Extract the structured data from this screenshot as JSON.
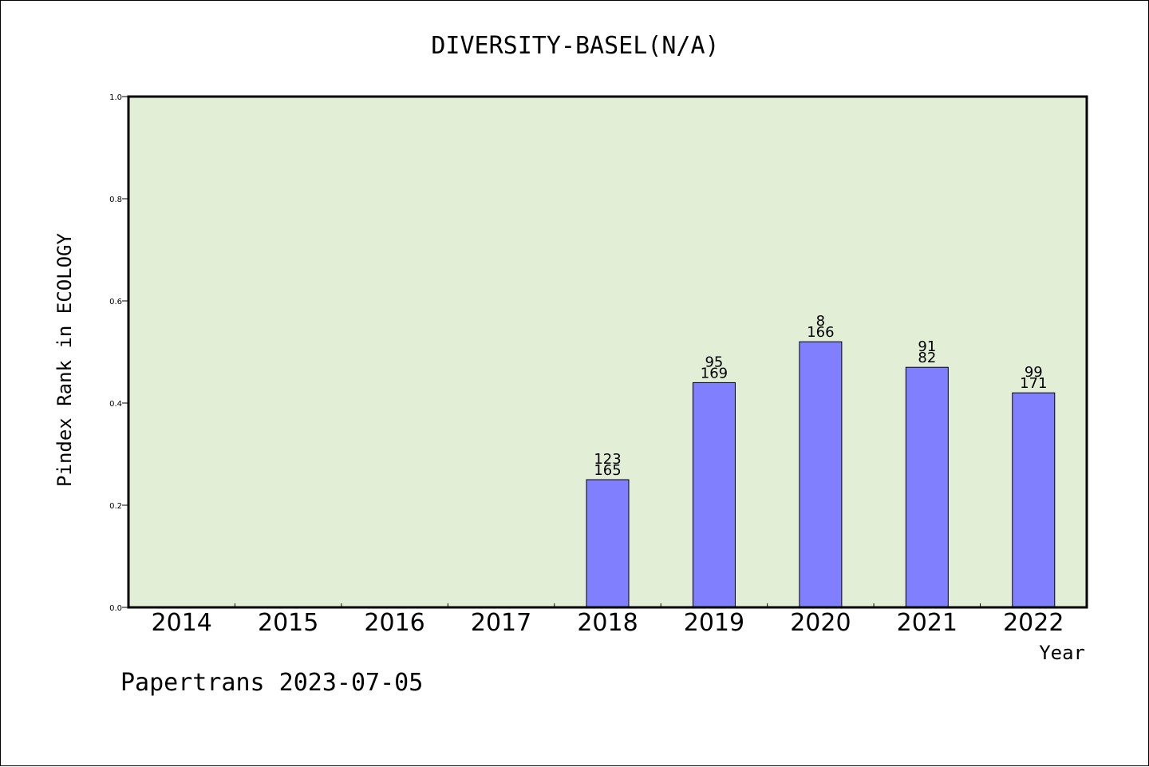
{
  "chart_data": {
    "type": "bar",
    "title": "DIVERSITY-BASEL(N/A)",
    "xlabel": "Year",
    "ylabel": "Pindex Rank in ECOLOGY",
    "categories": [
      "2014",
      "2015",
      "2016",
      "2017",
      "2018",
      "2019",
      "2020",
      "2021",
      "2022"
    ],
    "values": [
      null,
      null,
      null,
      null,
      0.25,
      0.44,
      0.52,
      0.47,
      0.42
    ],
    "label_top": [
      "",
      "",
      "",
      "",
      "123",
      "95",
      "8",
      "91",
      "99"
    ],
    "label_bottom": [
      "",
      "",
      "",
      "",
      "165",
      "169",
      "166",
      "82",
      "171"
    ],
    "ylim": [
      0,
      1.0
    ],
    "yticks": [
      "0.0",
      "0.2",
      "0.4",
      "0.6",
      "0.8",
      "1.0"
    ],
    "grid": false,
    "colors": {
      "plot_background": "#e2efd6",
      "bar": "#8080ff"
    }
  },
  "footer": "Papertrans 2023-07-05"
}
